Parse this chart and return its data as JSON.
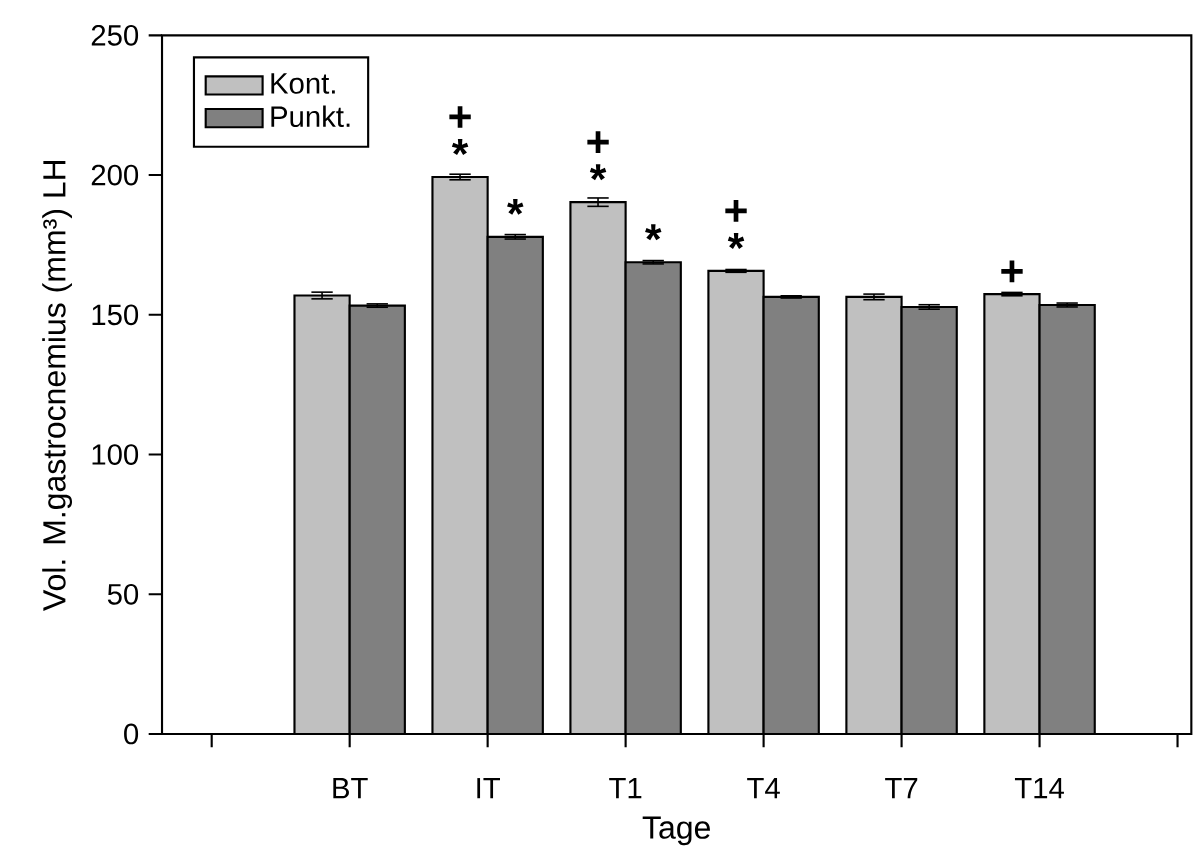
{
  "chart_data": {
    "type": "bar",
    "xlabel": "Tage",
    "ylabel": "Vol. M.gastrocnemius (mm³) LH",
    "categories": [
      "BT",
      "IT",
      "T1",
      "T4",
      "T7",
      "T14"
    ],
    "series": [
      {
        "name": "Kont.",
        "color": "#c0c0c0",
        "values": [
          156.9,
          199.3,
          190.3,
          165.7,
          156.4,
          157.4
        ],
        "errors": [
          1.2,
          1.0,
          1.5,
          0.5,
          1.0,
          0.6
        ]
      },
      {
        "name": "Punkt.",
        "color": "#808080",
        "values": [
          153.3,
          177.9,
          168.8,
          156.4,
          152.8,
          153.5
        ],
        "errors": [
          0.6,
          0.8,
          0.6,
          0.4,
          0.8,
          0.7
        ]
      }
    ],
    "ylim": [
      0,
      250
    ],
    "yticks": [
      0,
      50,
      100,
      150,
      200,
      250
    ],
    "legend": "top left",
    "grid": false,
    "annotations": [
      {
        "text": "*",
        "x": "IT",
        "y": 199.3
      },
      {
        "text": "+",
        "x": "IT",
        "y": 199.3
      },
      {
        "text": "*",
        "x": "IT",
        "y": 177.9
      },
      {
        "text": "*",
        "x": "T1",
        "y": 190.3
      },
      {
        "text": "+",
        "x": "T1",
        "y": 190.3
      },
      {
        "text": "*",
        "x": "T1",
        "y": 168.8
      },
      {
        "text": "*",
        "x": "T4",
        "y": 165.7
      },
      {
        "text": "+",
        "x": "T4",
        "y": 165.7
      },
      {
        "text": "+",
        "x": "T14",
        "y": 157.4
      }
    ]
  }
}
